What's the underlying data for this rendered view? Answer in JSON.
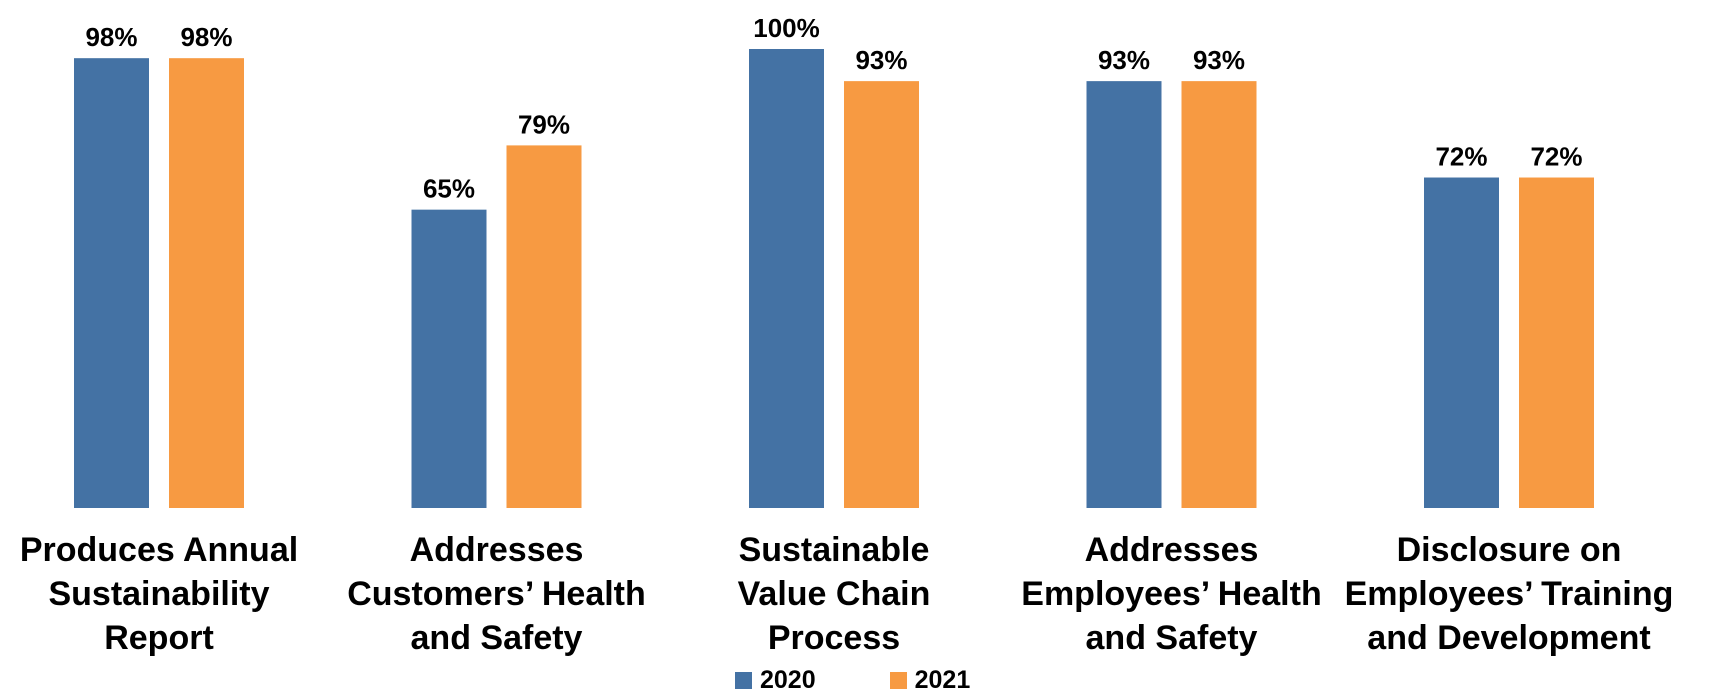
{
  "chart_data": {
    "type": "bar",
    "title": "",
    "xlabel": "",
    "ylabel": "",
    "ylim": [
      0,
      100
    ],
    "grid": false,
    "legend_position": "bottom",
    "categories": [
      "Produces Annual\nSustainability\nReport",
      "Addresses\nCustomers’ Health\nand Safety",
      "Sustainable\nValue Chain\nProcess",
      "Addresses\nEmployees’ Health\nand Safety",
      "Disclosure on\nEmployees’ Training\nand Development"
    ],
    "series": [
      {
        "name": "2020",
        "color": "#4472A4",
        "values": [
          98,
          65,
          100,
          93,
          72
        ],
        "labels": [
          "98%",
          "65%",
          "100%",
          "93%",
          "72%"
        ]
      },
      {
        "name": "2021",
        "color": "#F79A42",
        "values": [
          98,
          79,
          93,
          93,
          72
        ],
        "labels": [
          "98%",
          "79%",
          "93%",
          "93%",
          "72%"
        ]
      }
    ]
  }
}
